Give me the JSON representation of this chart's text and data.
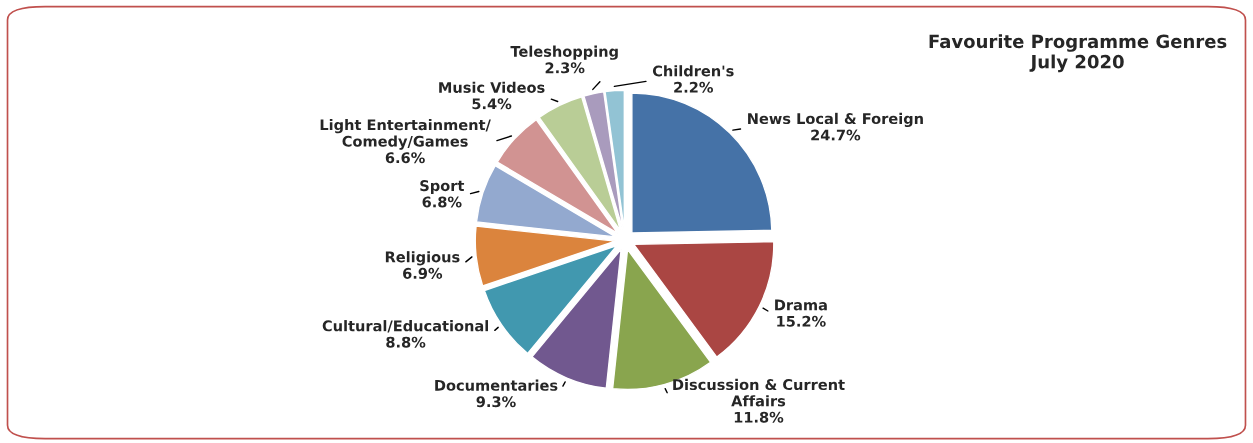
{
  "chart_data": {
    "type": "pie",
    "title": "Favourite Programme Genres\nJuly 2020",
    "categories": [
      "News Local & Foreign",
      "Drama",
      "Discussion & Current\nAffairs",
      "Documentaries",
      "Cultural/Educational",
      "Religious",
      "Sport",
      "Light Entertainment/\nComedy/Games",
      "Music Videos",
      "Teleshopping",
      "Children's"
    ],
    "values": [
      24.7,
      15.2,
      11.8,
      9.3,
      8.8,
      6.9,
      6.8,
      6.6,
      5.4,
      2.3,
      2.2
    ],
    "value_labels": [
      "24.7%",
      "15.2%",
      "11.8%",
      "9.3%",
      "8.8%",
      "6.9%",
      "6.8%",
      "6.6%",
      "5.4%",
      "2.3%",
      "2.2%"
    ],
    "colors": [
      "#4572a7",
      "#aa4643",
      "#89a54e",
      "#71588f",
      "#4198af",
      "#db843d",
      "#93a9cf",
      "#d19392",
      "#b9cd96",
      "#a99bbd",
      "#92c3d4"
    ],
    "legend": false
  }
}
